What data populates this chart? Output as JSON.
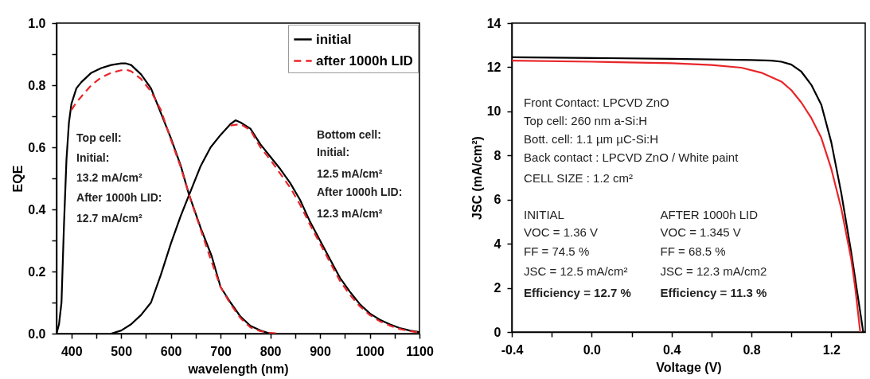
{
  "chart_data": [
    {
      "type": "line",
      "xlabel": "wavelength (nm)",
      "ylabel": "EQE",
      "xlim": [
        370,
        1100
      ],
      "ylim": [
        0,
        1
      ],
      "xticks": [
        400,
        {
          "value": 450,
          "label": null
        },
        500,
        {
          "value": 550,
          "label": null
        },
        600,
        {
          "value": 650,
          "label": null
        },
        700,
        {
          "value": 750,
          "label": null
        },
        800,
        {
          "value": 850,
          "label": null
        },
        900,
        {
          "value": 950,
          "label": null
        },
        1000,
        {
          "value": 1050,
          "label": null
        },
        1100
      ],
      "yticks": [
        {
          "value": 0,
          "label": "0.0"
        },
        {
          "value": 0.1,
          "label": null
        },
        0.2,
        {
          "value": 0.3,
          "label": null
        },
        0.4,
        {
          "value": 0.5,
          "label": null
        },
        0.6,
        {
          "value": 0.7,
          "label": null
        },
        0.8,
        {
          "value": 0.9,
          "label": null
        },
        {
          "value": 1,
          "label": "1.0"
        }
      ],
      "legend": "top right",
      "marker": "none",
      "series": [
        {
          "name": "initial",
          "color": "#000000",
          "line_style": "solid",
          "x": [
            370,
            375,
            380,
            385,
            390,
            395,
            400,
            410,
            420,
            440,
            460,
            480,
            500,
            510,
            520,
            540,
            560,
            580,
            600,
            620,
            636,
            660,
            682,
            700,
            720,
            740,
            760,
            780,
            800
          ],
          "values": [
            0,
            0.03,
            0.1,
            0.35,
            0.56,
            0.68,
            0.74,
            0.79,
            0.81,
            0.84,
            0.855,
            0.865,
            0.87,
            0.87,
            0.865,
            0.835,
            0.79,
            0.71,
            0.63,
            0.54,
            0.45,
            0.34,
            0.25,
            0.15,
            0.1,
            0.055,
            0.025,
            0.01,
            0
          ]
        },
        {
          "name": "after 1000h LID",
          "color": "#e8262a",
          "line_style": "dashed",
          "x": [
            400,
            410,
            440,
            460,
            480,
            500,
            510,
            520,
            540,
            560,
            580,
            600,
            620,
            640,
            660,
            680,
            700,
            720,
            740,
            760,
            780,
            800,
            820
          ],
          "values": [
            0.72,
            0.745,
            0.8,
            0.825,
            0.84,
            0.848,
            0.85,
            0.845,
            0.82,
            0.78,
            0.72,
            0.625,
            0.535,
            0.43,
            0.335,
            0.24,
            0.15,
            0.095,
            0.05,
            0.02,
            0.008,
            0.002,
            0
          ]
        },
        {
          "color": "#000000",
          "line_style": "solid",
          "x": [
            480,
            500,
            520,
            540,
            560,
            580,
            600,
            620,
            640,
            660,
            680,
            700,
            720,
            730,
            740,
            760,
            780,
            800,
            820,
            840,
            860,
            880,
            900,
            920,
            940,
            960,
            980,
            1000,
            1020,
            1040,
            1060,
            1080,
            1100
          ],
          "values": [
            0,
            0.01,
            0.03,
            0.06,
            0.1,
            0.19,
            0.29,
            0.38,
            0.46,
            0.54,
            0.6,
            0.64,
            0.675,
            0.687,
            0.68,
            0.66,
            0.61,
            0.57,
            0.53,
            0.485,
            0.43,
            0.36,
            0.3,
            0.24,
            0.18,
            0.135,
            0.095,
            0.065,
            0.045,
            0.03,
            0.018,
            0.01,
            0.005
          ]
        },
        {
          "color": "#e8262a",
          "line_style": "dashed",
          "x": [
            720,
            740,
            760,
            780,
            800,
            820,
            840,
            860,
            880,
            900,
            920,
            940,
            960,
            980,
            1000,
            1020,
            1040,
            1060,
            1080,
            1100
          ],
          "values": [
            0.67,
            0.675,
            0.655,
            0.6,
            0.56,
            0.515,
            0.47,
            0.415,
            0.35,
            0.29,
            0.23,
            0.17,
            0.125,
            0.088,
            0.06,
            0.04,
            0.026,
            0.015,
            0.008,
            0.004
          ]
        }
      ],
      "annotations": [
        "Top cell:",
        "Initial:",
        "13.2 mA/cm²",
        "After 1000h LID:",
        "12.7 mA/cm²",
        "Bottom cell:",
        "Initial:",
        "12.5 mA/cm²",
        "After 1000h LID:",
        "12.3 mA/cm²"
      ]
    },
    {
      "type": "line",
      "xlabel": "Voltage (V)",
      "ylabel": "JSC (mA/cm²)",
      "xlim": [
        -0.4,
        1.37
      ],
      "ylim": [
        0,
        14
      ],
      "xticks": [
        -0.4,
        {
          "value": -0.2,
          "label": null
        },
        {
          "value": 0,
          "label": "0.0"
        },
        {
          "value": 0.2,
          "label": null
        },
        0.4,
        {
          "value": 0.6,
          "label": null
        },
        0.8,
        {
          "value": 1,
          "label": null
        },
        1.2
      ],
      "yticks": [
        0,
        2,
        4,
        6,
        8,
        10,
        12,
        14
      ],
      "legend": false,
      "marker": "none",
      "series": [
        {
          "color": "#000000",
          "line_style": "solid",
          "x": [
            -0.4,
            0,
            0.4,
            0.8,
            0.9,
            0.95,
            1.0,
            1.05,
            1.1,
            1.15,
            1.2,
            1.25,
            1.3,
            1.33,
            1.36
          ],
          "values": [
            12.45,
            12.42,
            12.38,
            12.33,
            12.3,
            12.25,
            12.12,
            11.8,
            11.2,
            10.3,
            8.6,
            6.3,
            3.6,
            1.8,
            0
          ]
        },
        {
          "color": "#e8262a",
          "line_style": "solid",
          "x": [
            -0.4,
            0,
            0.4,
            0.6,
            0.75,
            0.85,
            0.95,
            1.0,
            1.05,
            1.1,
            1.15,
            1.2,
            1.25,
            1.3,
            1.32,
            1.345
          ],
          "values": [
            12.3,
            12.25,
            12.18,
            12.1,
            11.98,
            11.75,
            11.35,
            10.96,
            10.4,
            9.7,
            8.8,
            7.4,
            5.6,
            3.3,
            2.0,
            0
          ]
        }
      ],
      "annotations": [
        "Front Contact: LPCVD ZnO",
        "Top cell: 260 nm a-Si:H",
        "Bott. cell: 1.1 µm µC-Si:H",
        "Back contact : LPCVD ZnO / White paint",
        "CELL SIZE : 1.2 cm²",
        "INITIAL",
        "VOC = 1.36 V",
        "FF = 74.5 %",
        "JSC = 12.5 mA/cm²",
        "Efficiency = 12.7 %",
        "AFTER 1000h LID",
        "VOC = 1.345 V",
        "FF = 68.5 %",
        "JSC = 12.3 mA/cm2",
        "Efficiency = 11.3 %"
      ]
    }
  ]
}
